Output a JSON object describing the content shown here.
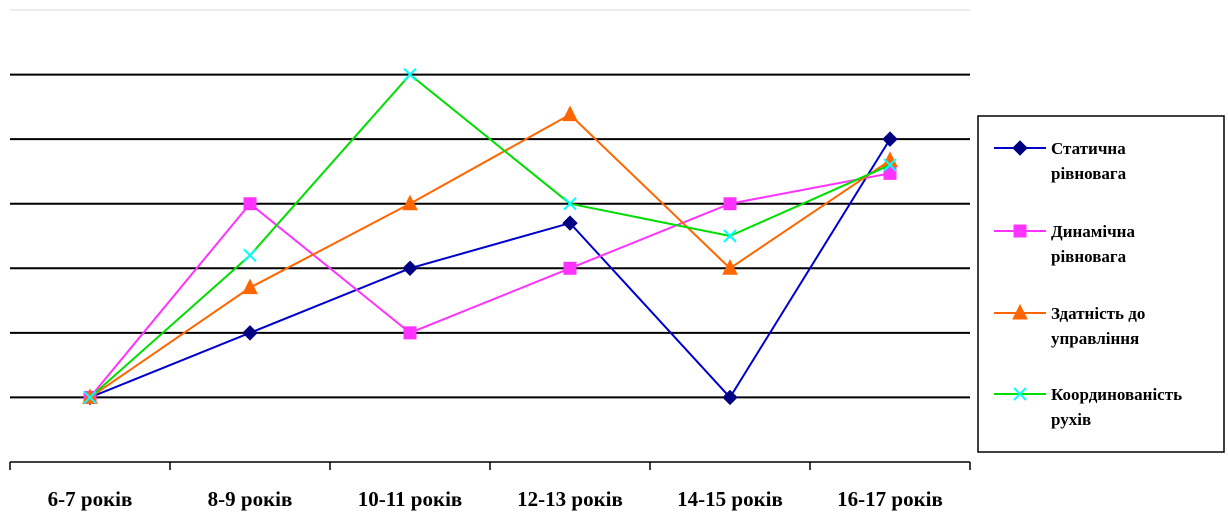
{
  "chart_data": {
    "type": "line",
    "title": "",
    "xlabel": "",
    "ylabel": "",
    "categories": [
      "6-7 років",
      "8-9 років",
      "10-11 років",
      "12-13 років",
      "14-15 років",
      "16-17 років"
    ],
    "ylim": [
      0,
      6
    ],
    "grid": true,
    "y_tick_labels_shown": false,
    "legend_position": "right",
    "series": [
      {
        "name": "Статична рівновага",
        "name_lines": [
          "Статична",
          "рівновага"
        ],
        "values": [
          1.0,
          2.0,
          3.0,
          3.7,
          1.0,
          5.0
        ],
        "color": "#0000cc",
        "marker": "diamond",
        "marker_color": "#000080"
      },
      {
        "name": "Динамічна рівновага",
        "name_lines": [
          "Динамічна",
          "рівновага"
        ],
        "values": [
          1.0,
          4.0,
          2.0,
          3.0,
          4.0,
          4.47
        ],
        "color": "#ff33ff",
        "marker": "square",
        "marker_color": "#ff33ff"
      },
      {
        "name": "Здатність до управління",
        "name_lines": [
          "Здатність до",
          "управління"
        ],
        "values": [
          1.0,
          2.7,
          4.0,
          5.38,
          3.0,
          4.67
        ],
        "color": "#ff6600",
        "marker": "triangle",
        "marker_color": "#ff6600"
      },
      {
        "name": "Координованість рухів",
        "name_lines": [
          "Координованість",
          "рухів"
        ],
        "values": [
          1.0,
          3.2,
          6.0,
          4.0,
          3.5,
          4.6
        ],
        "color": "#00dd00",
        "marker": "x",
        "marker_color": "#00ffff"
      }
    ]
  }
}
